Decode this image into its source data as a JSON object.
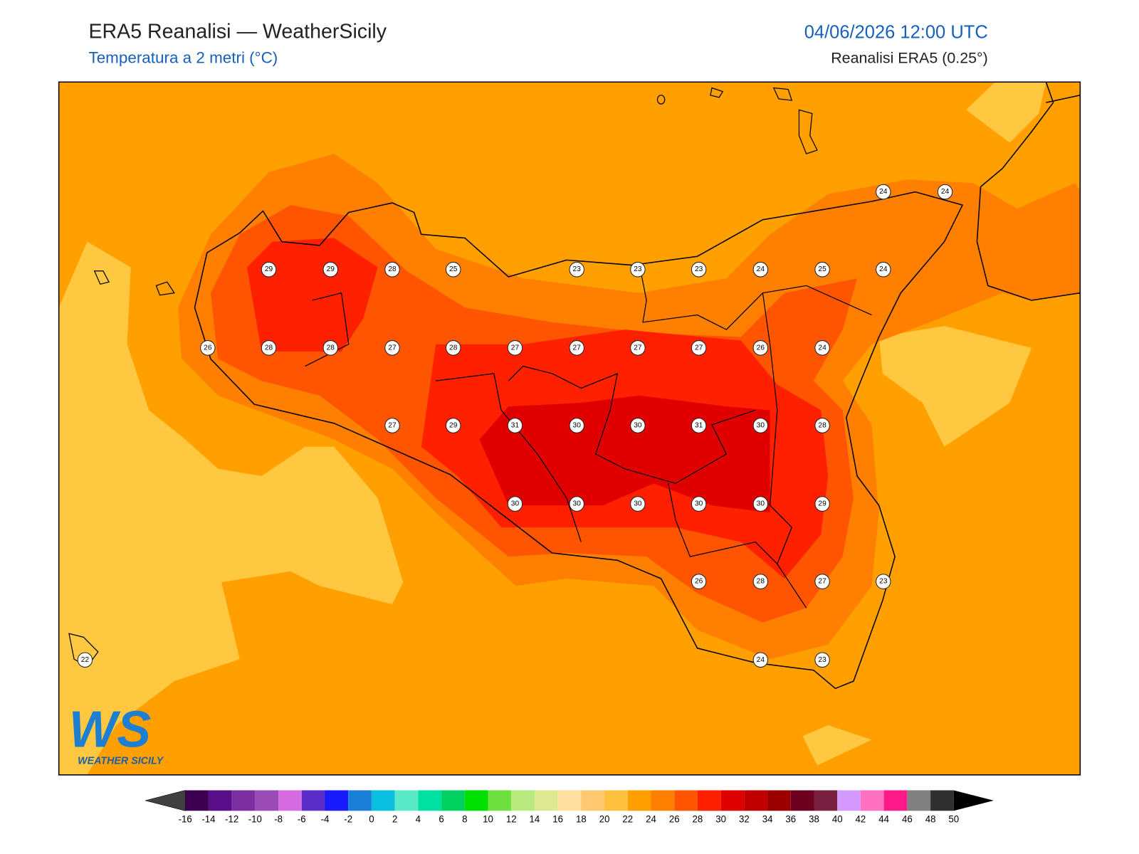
{
  "header": {
    "title": "ERA5 Reanalisi — WeatherSicily",
    "subtitle": "Temperatura a 2 metri (°C)",
    "datetime": "04/06/2026 12:00 UTC",
    "source": "Reanalisi ERA5 (0.25°)"
  },
  "logo": {
    "mark": "WS",
    "text": "WEATHER SICILY"
  },
  "stations": [
    24,
    24,
    29,
    29,
    28,
    25,
    23,
    23,
    23,
    24,
    25,
    24,
    26,
    28,
    28,
    27,
    28,
    27,
    27,
    27,
    27,
    26,
    24,
    27,
    29,
    31,
    30,
    30,
    31,
    30,
    28,
    30,
    30,
    30,
    30,
    30,
    29,
    26,
    28,
    27,
    23,
    22,
    24,
    23
  ],
  "colorbar": {
    "ticks": [
      -16,
      -14,
      -12,
      -10,
      -8,
      -6,
      -4,
      -2,
      0,
      2,
      4,
      6,
      8,
      10,
      12,
      14,
      16,
      18,
      20,
      22,
      24,
      26,
      28,
      30,
      32,
      34,
      36,
      38,
      40,
      42,
      44,
      46,
      48,
      50
    ],
    "colors": [
      "#3d0050",
      "#5a0f8a",
      "#7b2fa0",
      "#9b4bb5",
      "#d46be0",
      "#5b2dc8",
      "#1a1aff",
      "#1a7fd6",
      "#0abfe0",
      "#5aeac8",
      "#00e0a0",
      "#00d060",
      "#00e000",
      "#70e040",
      "#b8ea80",
      "#dde890",
      "#ffe0a0",
      "#ffc870",
      "#ffc040",
      "#ffa000",
      "#ff8000",
      "#ff5500",
      "#ff2000",
      "#e00000",
      "#c00000",
      "#9a0000",
      "#6e0020",
      "#7a2040",
      "#d59aff",
      "#ff70c0",
      "#ff1a8a",
      "#808080",
      "#303030"
    ],
    "under_color": "#404040",
    "over_color": "#000000"
  }
}
